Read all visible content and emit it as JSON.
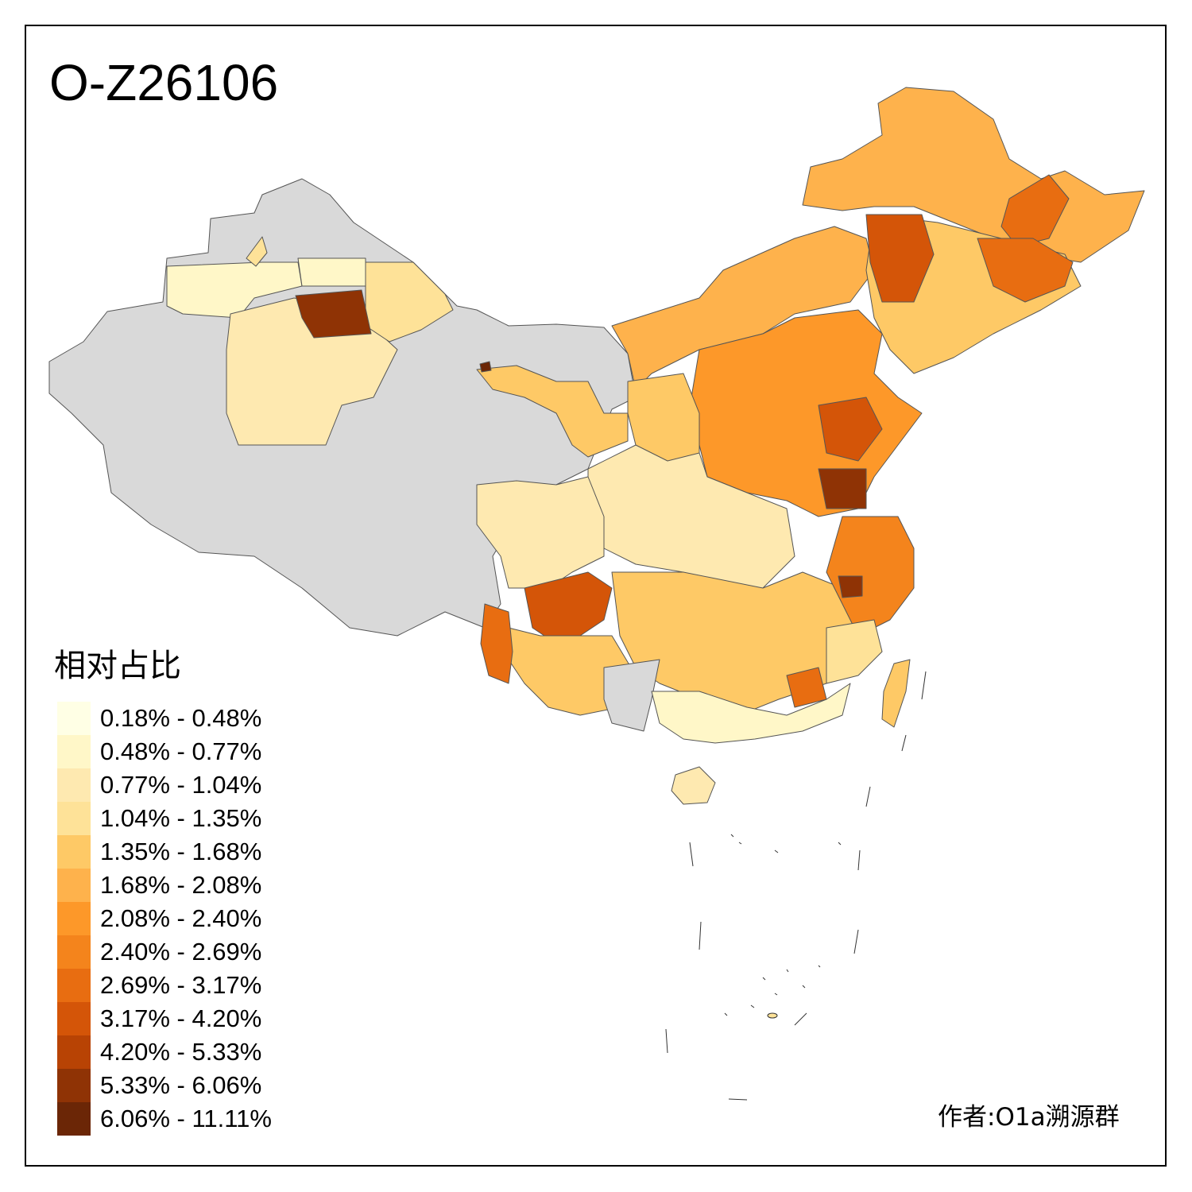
{
  "title": "O-Z26106",
  "legend": {
    "title": "相对占比",
    "items": [
      {
        "label": "0.18% - 0.48%",
        "color": "#ffffe5"
      },
      {
        "label": "0.48% - 0.77%",
        "color": "#fff7c8"
      },
      {
        "label": "0.77% - 1.04%",
        "color": "#fee9b0"
      },
      {
        "label": "1.04% - 1.35%",
        "color": "#fee298"
      },
      {
        "label": "1.35% - 1.68%",
        "color": "#fec966"
      },
      {
        "label": "1.68% - 2.08%",
        "color": "#feb24c"
      },
      {
        "label": "2.08% - 2.40%",
        "color": "#fd9829"
      },
      {
        "label": "2.40% - 2.69%",
        "color": "#f4841c"
      },
      {
        "label": "2.69% - 3.17%",
        "color": "#e86d11"
      },
      {
        "label": "3.17% - 4.20%",
        "color": "#d45508"
      },
      {
        "label": "4.20% - 5.33%",
        "color": "#b84304"
      },
      {
        "label": "5.33% - 6.06%",
        "color": "#8f3305"
      },
      {
        "label": "6.06% - 11.11%",
        "color": "#6b2606"
      }
    ]
  },
  "no_data_color": "#d9d9d9",
  "credit": "作者:O1a溯源群"
}
